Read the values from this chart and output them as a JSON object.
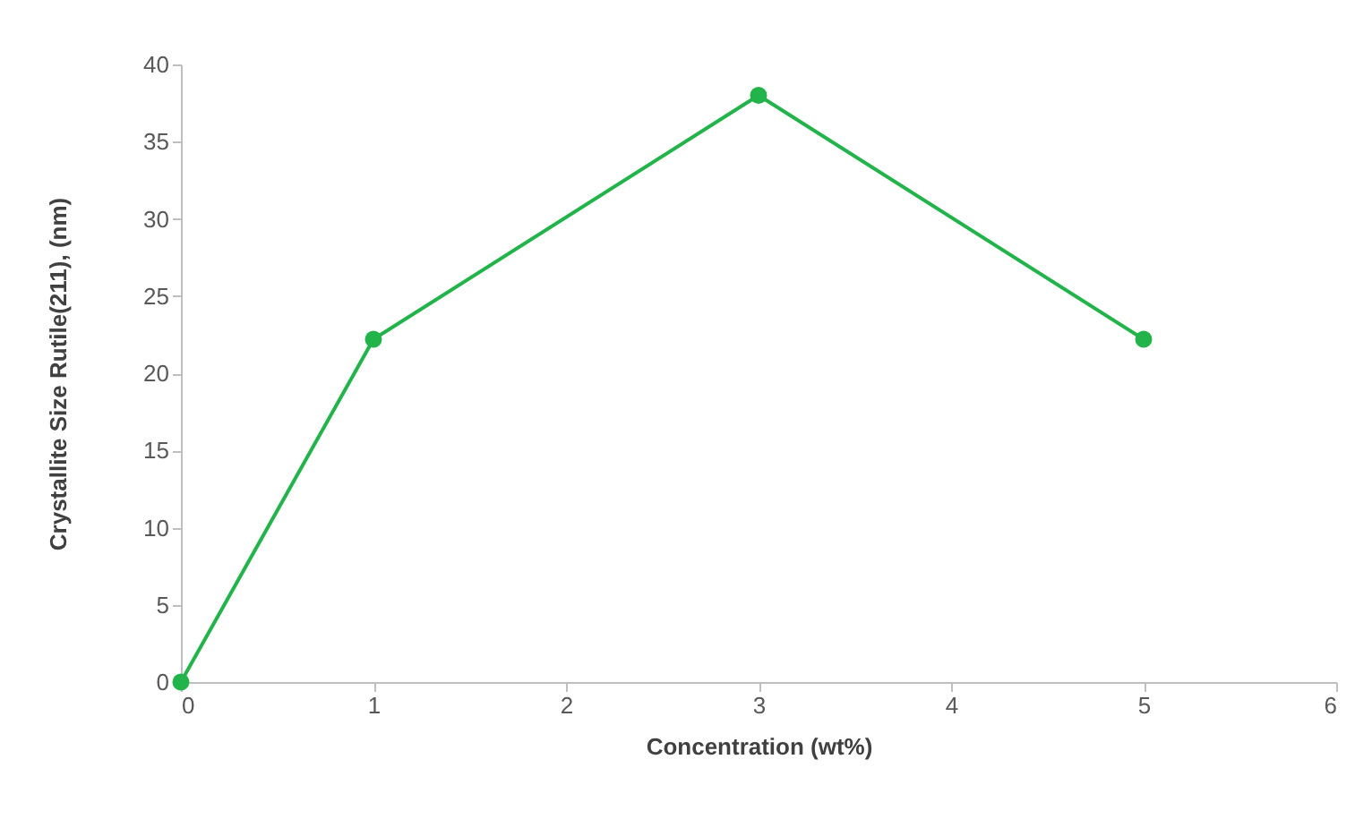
{
  "chart_data": {
    "type": "line",
    "xlabel": "Concentration (wt%)",
    "ylabel": "Crystallite Size Rutile(211),  (nm)",
    "x": [
      0,
      1,
      3,
      5
    ],
    "series": [
      {
        "color": "#22b44a",
        "values": [
          0,
          22.2,
          38,
          22.2
        ]
      }
    ],
    "xlim": [
      0,
      6
    ],
    "xticks": [
      0,
      1,
      2,
      3,
      4,
      5,
      6
    ],
    "ylim": [
      0,
      40
    ],
    "yticks": [
      0,
      5,
      10,
      15,
      20,
      25,
      30,
      35,
      40
    ],
    "grid": false,
    "marker": "circle",
    "line_style": "solid"
  }
}
